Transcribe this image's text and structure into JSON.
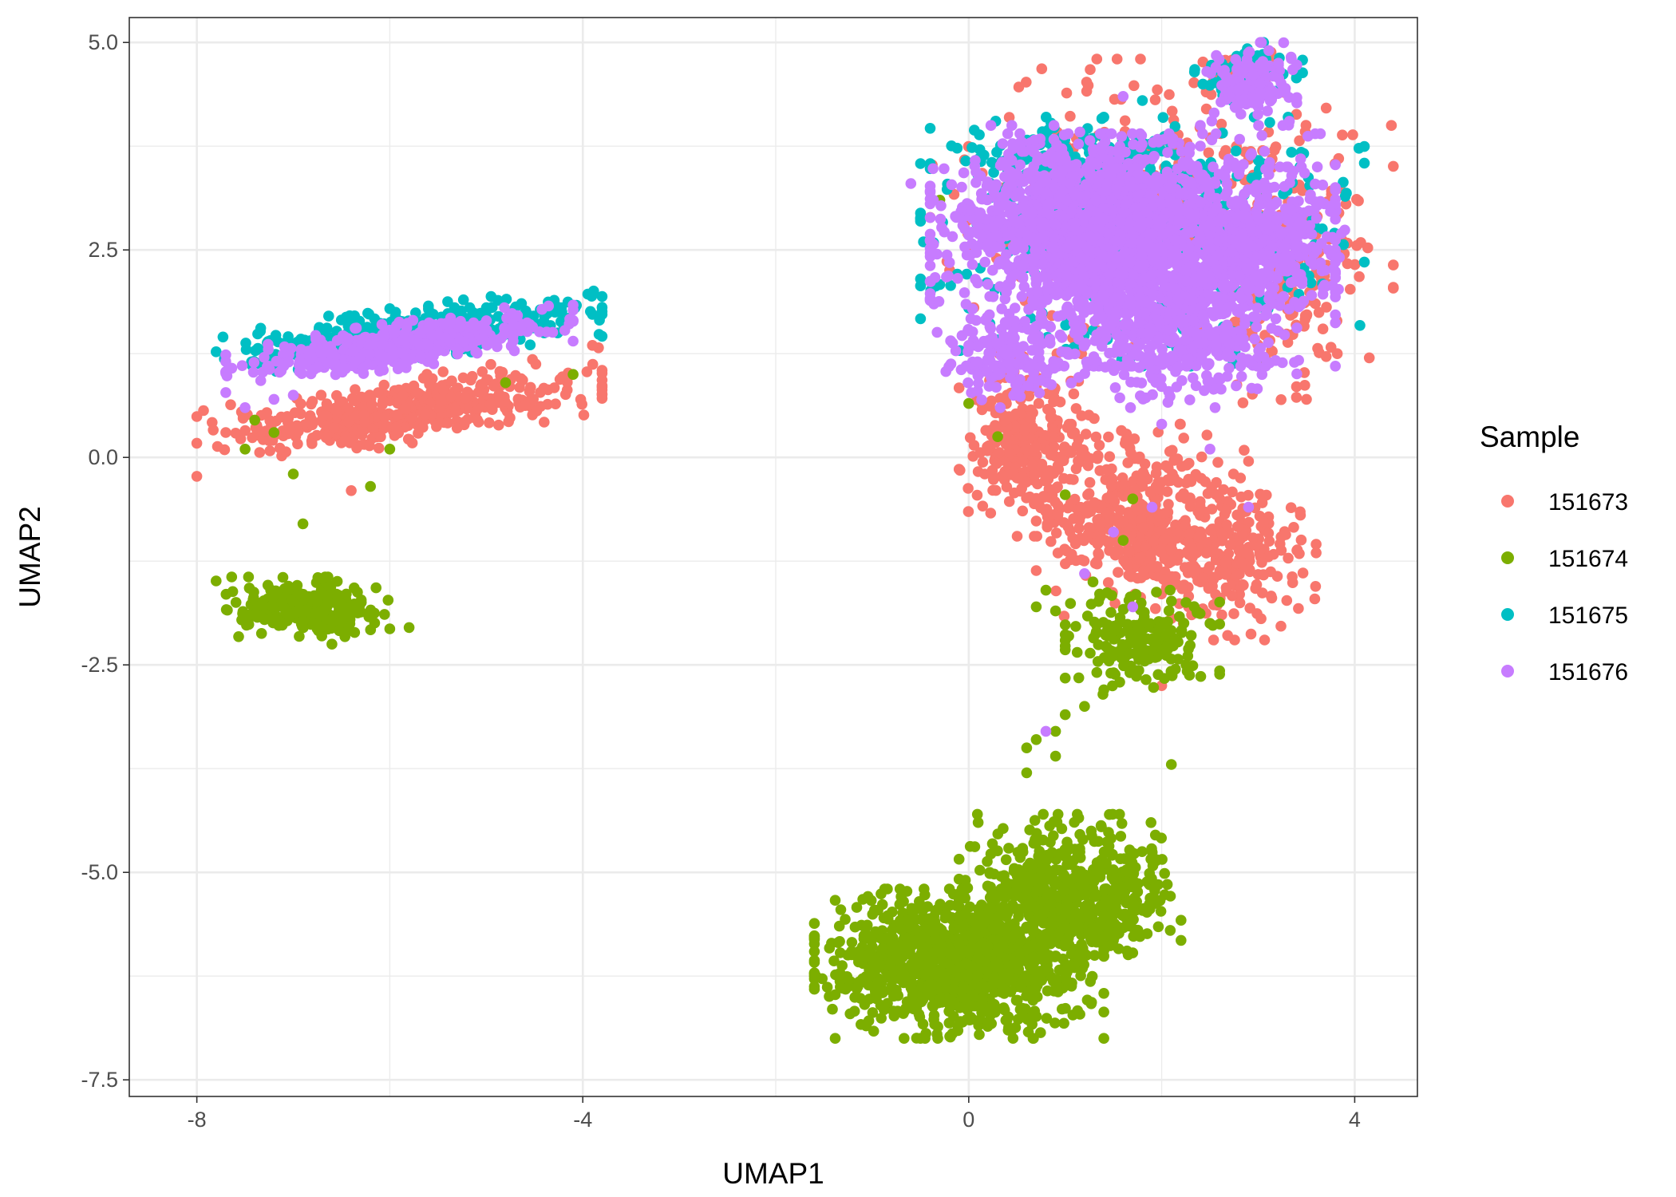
{
  "chart_data": {
    "type": "scatter",
    "title": "",
    "xlabel": "UMAP1",
    "ylabel": "UMAP2",
    "xlim": [
      -8.7,
      4.65
    ],
    "ylim": [
      -7.7,
      5.3
    ],
    "x_ticks": [
      -8,
      -4,
      0,
      4
    ],
    "x_tick_labels": [
      "-8",
      "-4",
      "0",
      "4"
    ],
    "y_ticks": [
      -7.5,
      -5.0,
      -2.5,
      0.0,
      2.5,
      5.0
    ],
    "y_tick_labels": [
      "-7.5",
      "-5.0",
      "-2.5",
      "0.0",
      "2.5",
      "5.0"
    ],
    "grid": true,
    "legend": {
      "title": "Sample",
      "position": "right",
      "entries": [
        "151673",
        "151674",
        "151675",
        "151676"
      ]
    },
    "series": [
      {
        "name": "151673",
        "color": "#F8766D",
        "clusters": [
          {
            "cx": -5.9,
            "cy": 0.55,
            "sx": 1.05,
            "sy": 0.2,
            "tilt": 0.09,
            "n": 520
          },
          {
            "cx": 0.6,
            "cy": 0.15,
            "sx": 0.35,
            "sy": 0.55,
            "tilt": 0,
            "n": 280
          },
          {
            "cx": 1.8,
            "cy": -0.8,
            "sx": 0.55,
            "sy": 0.6,
            "tilt": 0,
            "n": 430
          },
          {
            "cx": 2.8,
            "cy": -1.2,
            "sx": 0.4,
            "sy": 0.5,
            "tilt": 0,
            "n": 200
          },
          {
            "cx": 2.0,
            "cy": 3.0,
            "sx": 1.2,
            "sy": 0.9,
            "tilt": 0,
            "n": 320
          },
          {
            "cx": 3.3,
            "cy": 2.0,
            "sx": 0.45,
            "sy": 0.7,
            "tilt": 0,
            "n": 120
          },
          {
            "cx": 2.8,
            "cy": 4.6,
            "sx": 0.3,
            "sy": 0.15,
            "tilt": 0,
            "n": 60
          }
        ],
        "points": [
          [
            -6.4,
            -0.4
          ],
          [
            2.0,
            -2.75
          ],
          [
            3.5,
            0.7
          ],
          [
            -7.7,
            0.3
          ],
          [
            -3.9,
            1.35
          ],
          [
            -5.6,
            1.8
          ]
        ]
      },
      {
        "name": "151674",
        "color": "#7CAE00",
        "clusters": [
          {
            "cx": -6.9,
            "cy": -1.8,
            "sx": 0.45,
            "sy": 0.18,
            "tilt": 0,
            "n": 260
          },
          {
            "cx": -0.1,
            "cy": -6.1,
            "sx": 0.75,
            "sy": 0.45,
            "tilt": 0,
            "n": 1100
          },
          {
            "cx": 0.8,
            "cy": -5.3,
            "sx": 0.45,
            "sy": 0.5,
            "tilt": 0,
            "n": 380
          },
          {
            "cx": 1.6,
            "cy": -5.2,
            "sx": 0.3,
            "sy": 0.4,
            "tilt": 0,
            "n": 180
          },
          {
            "cx": 1.8,
            "cy": -2.2,
            "sx": 0.4,
            "sy": 0.35,
            "tilt": 0,
            "n": 200
          }
        ],
        "points": [
          [
            -7.5,
            0.1
          ],
          [
            -7.2,
            0.3
          ],
          [
            -7.0,
            -0.2
          ],
          [
            -6.9,
            -0.8
          ],
          [
            -6.2,
            -0.35
          ],
          [
            -6.0,
            0.1
          ],
          [
            -7.4,
            0.45
          ],
          [
            -4.6,
            1.7
          ],
          [
            -4.8,
            0.9
          ],
          [
            -5.8,
            -2.05
          ],
          [
            -6.6,
            -2.25
          ],
          [
            1.4,
            -2.8
          ],
          [
            1.2,
            -3.0
          ],
          [
            1.0,
            -3.1
          ],
          [
            0.9,
            -3.3
          ],
          [
            0.7,
            -3.4
          ],
          [
            0.6,
            -3.5
          ],
          [
            0.9,
            -3.6
          ],
          [
            0.6,
            -3.8
          ],
          [
            2.1,
            -3.7
          ],
          [
            0.7,
            -1.8
          ],
          [
            0.9,
            -1.85
          ],
          [
            1.0,
            -0.45
          ],
          [
            1.7,
            -0.5
          ],
          [
            0.0,
            0.65
          ],
          [
            0.3,
            0.25
          ],
          [
            -0.3,
            3.1
          ],
          [
            2.5,
            -2.0
          ],
          [
            -4.1,
            1.0
          ],
          [
            1.6,
            -1.0
          ],
          [
            0.8,
            -1.6
          ]
        ]
      },
      {
        "name": "151675",
        "color": "#00BFC4",
        "clusters": [
          {
            "cx": -5.8,
            "cy": 1.5,
            "sx": 1.0,
            "sy": 0.16,
            "tilt": 0.07,
            "n": 400
          },
          {
            "cx": 1.8,
            "cy": 2.6,
            "sx": 1.15,
            "sy": 0.75,
            "tilt": 0,
            "n": 500
          },
          {
            "cx": 1.0,
            "cy": 3.6,
            "sx": 0.7,
            "sy": 0.25,
            "tilt": 0,
            "n": 180
          },
          {
            "cx": 2.9,
            "cy": 4.6,
            "sx": 0.28,
            "sy": 0.2,
            "tilt": 0,
            "n": 80
          }
        ],
        "points": [
          [
            -4.2,
            1.6
          ],
          [
            -4.4,
            1.5
          ],
          [
            0.0,
            1.8
          ],
          [
            2.3,
            1.1
          ],
          [
            1.8,
            4.3
          ],
          [
            1.4,
            4.1
          ]
        ]
      },
      {
        "name": "151676",
        "color": "#C77CFF",
        "clusters": [
          {
            "cx": -5.9,
            "cy": 1.35,
            "sx": 0.9,
            "sy": 0.14,
            "tilt": 0.08,
            "n": 450
          },
          {
            "cx": 1.7,
            "cy": 2.5,
            "sx": 1.05,
            "sy": 0.7,
            "tilt": 0,
            "n": 1700
          },
          {
            "cx": 1.0,
            "cy": 3.1,
            "sx": 0.7,
            "sy": 0.45,
            "tilt": 0,
            "n": 400
          },
          {
            "cx": 2.2,
            "cy": 1.4,
            "sx": 0.6,
            "sy": 0.4,
            "tilt": 0,
            "n": 300
          },
          {
            "cx": 3.2,
            "cy": 2.6,
            "sx": 0.35,
            "sy": 0.45,
            "tilt": 0,
            "n": 200
          },
          {
            "cx": 2.9,
            "cy": 4.5,
            "sx": 0.25,
            "sy": 0.25,
            "tilt": 0,
            "n": 140
          },
          {
            "cx": 0.4,
            "cy": 1.2,
            "sx": 0.35,
            "sy": 0.3,
            "tilt": 0,
            "n": 150
          }
        ],
        "points": [
          [
            -7.2,
            0.7
          ],
          [
            -7.5,
            0.6
          ],
          [
            -7.0,
            0.75
          ],
          [
            1.6,
            4.35
          ],
          [
            0.8,
            -3.3
          ],
          [
            1.5,
            -0.9
          ],
          [
            1.9,
            -0.6
          ],
          [
            2.0,
            0.4
          ],
          [
            2.5,
            0.1
          ],
          [
            2.9,
            -0.6
          ],
          [
            1.2,
            -1.4
          ],
          [
            -0.6,
            3.3
          ],
          [
            0.0,
            1.35
          ],
          [
            1.7,
            -1.8
          ]
        ]
      }
    ]
  }
}
